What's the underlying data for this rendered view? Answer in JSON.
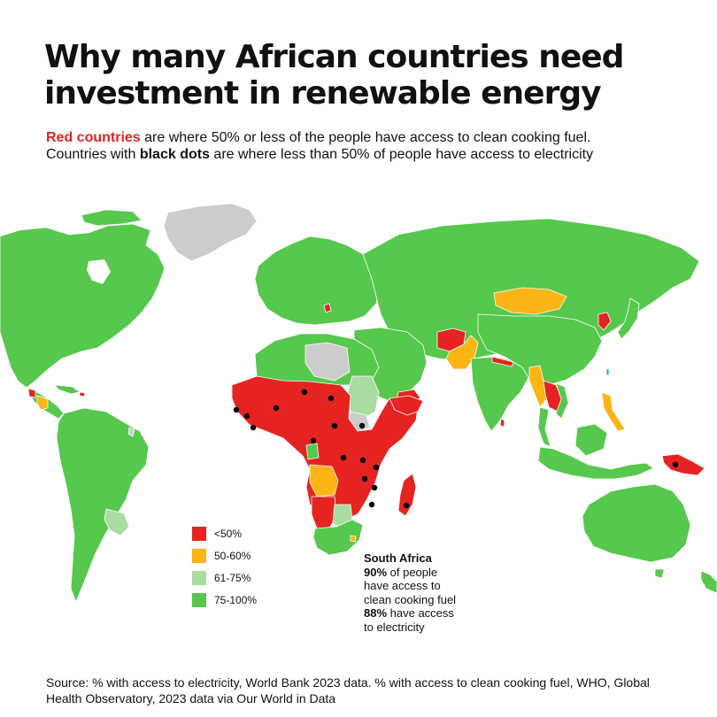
{
  "title": "Why many African countries need investment in renewable energy",
  "subtitle": {
    "line1_highlight": "Red countries",
    "line1_rest": " are where 50% or less of the people have access to clean cooking fuel.",
    "line2_start": "Countries with ",
    "line2_highlight": "black dots",
    "line2_rest": " are where less than 50% of people have access to electricity"
  },
  "colors": {
    "red": "#e52421",
    "orange": "#fbb514",
    "light_green": "#a8dca0",
    "green": "#56c84d",
    "no_data": "#cccccc",
    "dot": "#000000"
  },
  "legend": [
    {
      "label": "<50%",
      "color": "#e52421"
    },
    {
      "label": "50-60%",
      "color": "#fbb514"
    },
    {
      "label": "61-75%",
      "color": "#a8dca0"
    },
    {
      "label": "75-100%",
      "color": "#56c84d"
    }
  ],
  "annotation": {
    "country": "South Africa",
    "cooking_value": "90%",
    "cooking_text1": " of people",
    "cooking_text2": "have access to",
    "cooking_text3": "clean cooking fuel",
    "electricity_value": "88%",
    "electricity_text1": " have access",
    "electricity_text2": "to electricity"
  },
  "source": "Source: % with access to electricity, World Bank 2023 data. % with access to clean cooking fuel, WHO, Global Health Observatory, 2023 data via Our World in Data"
}
